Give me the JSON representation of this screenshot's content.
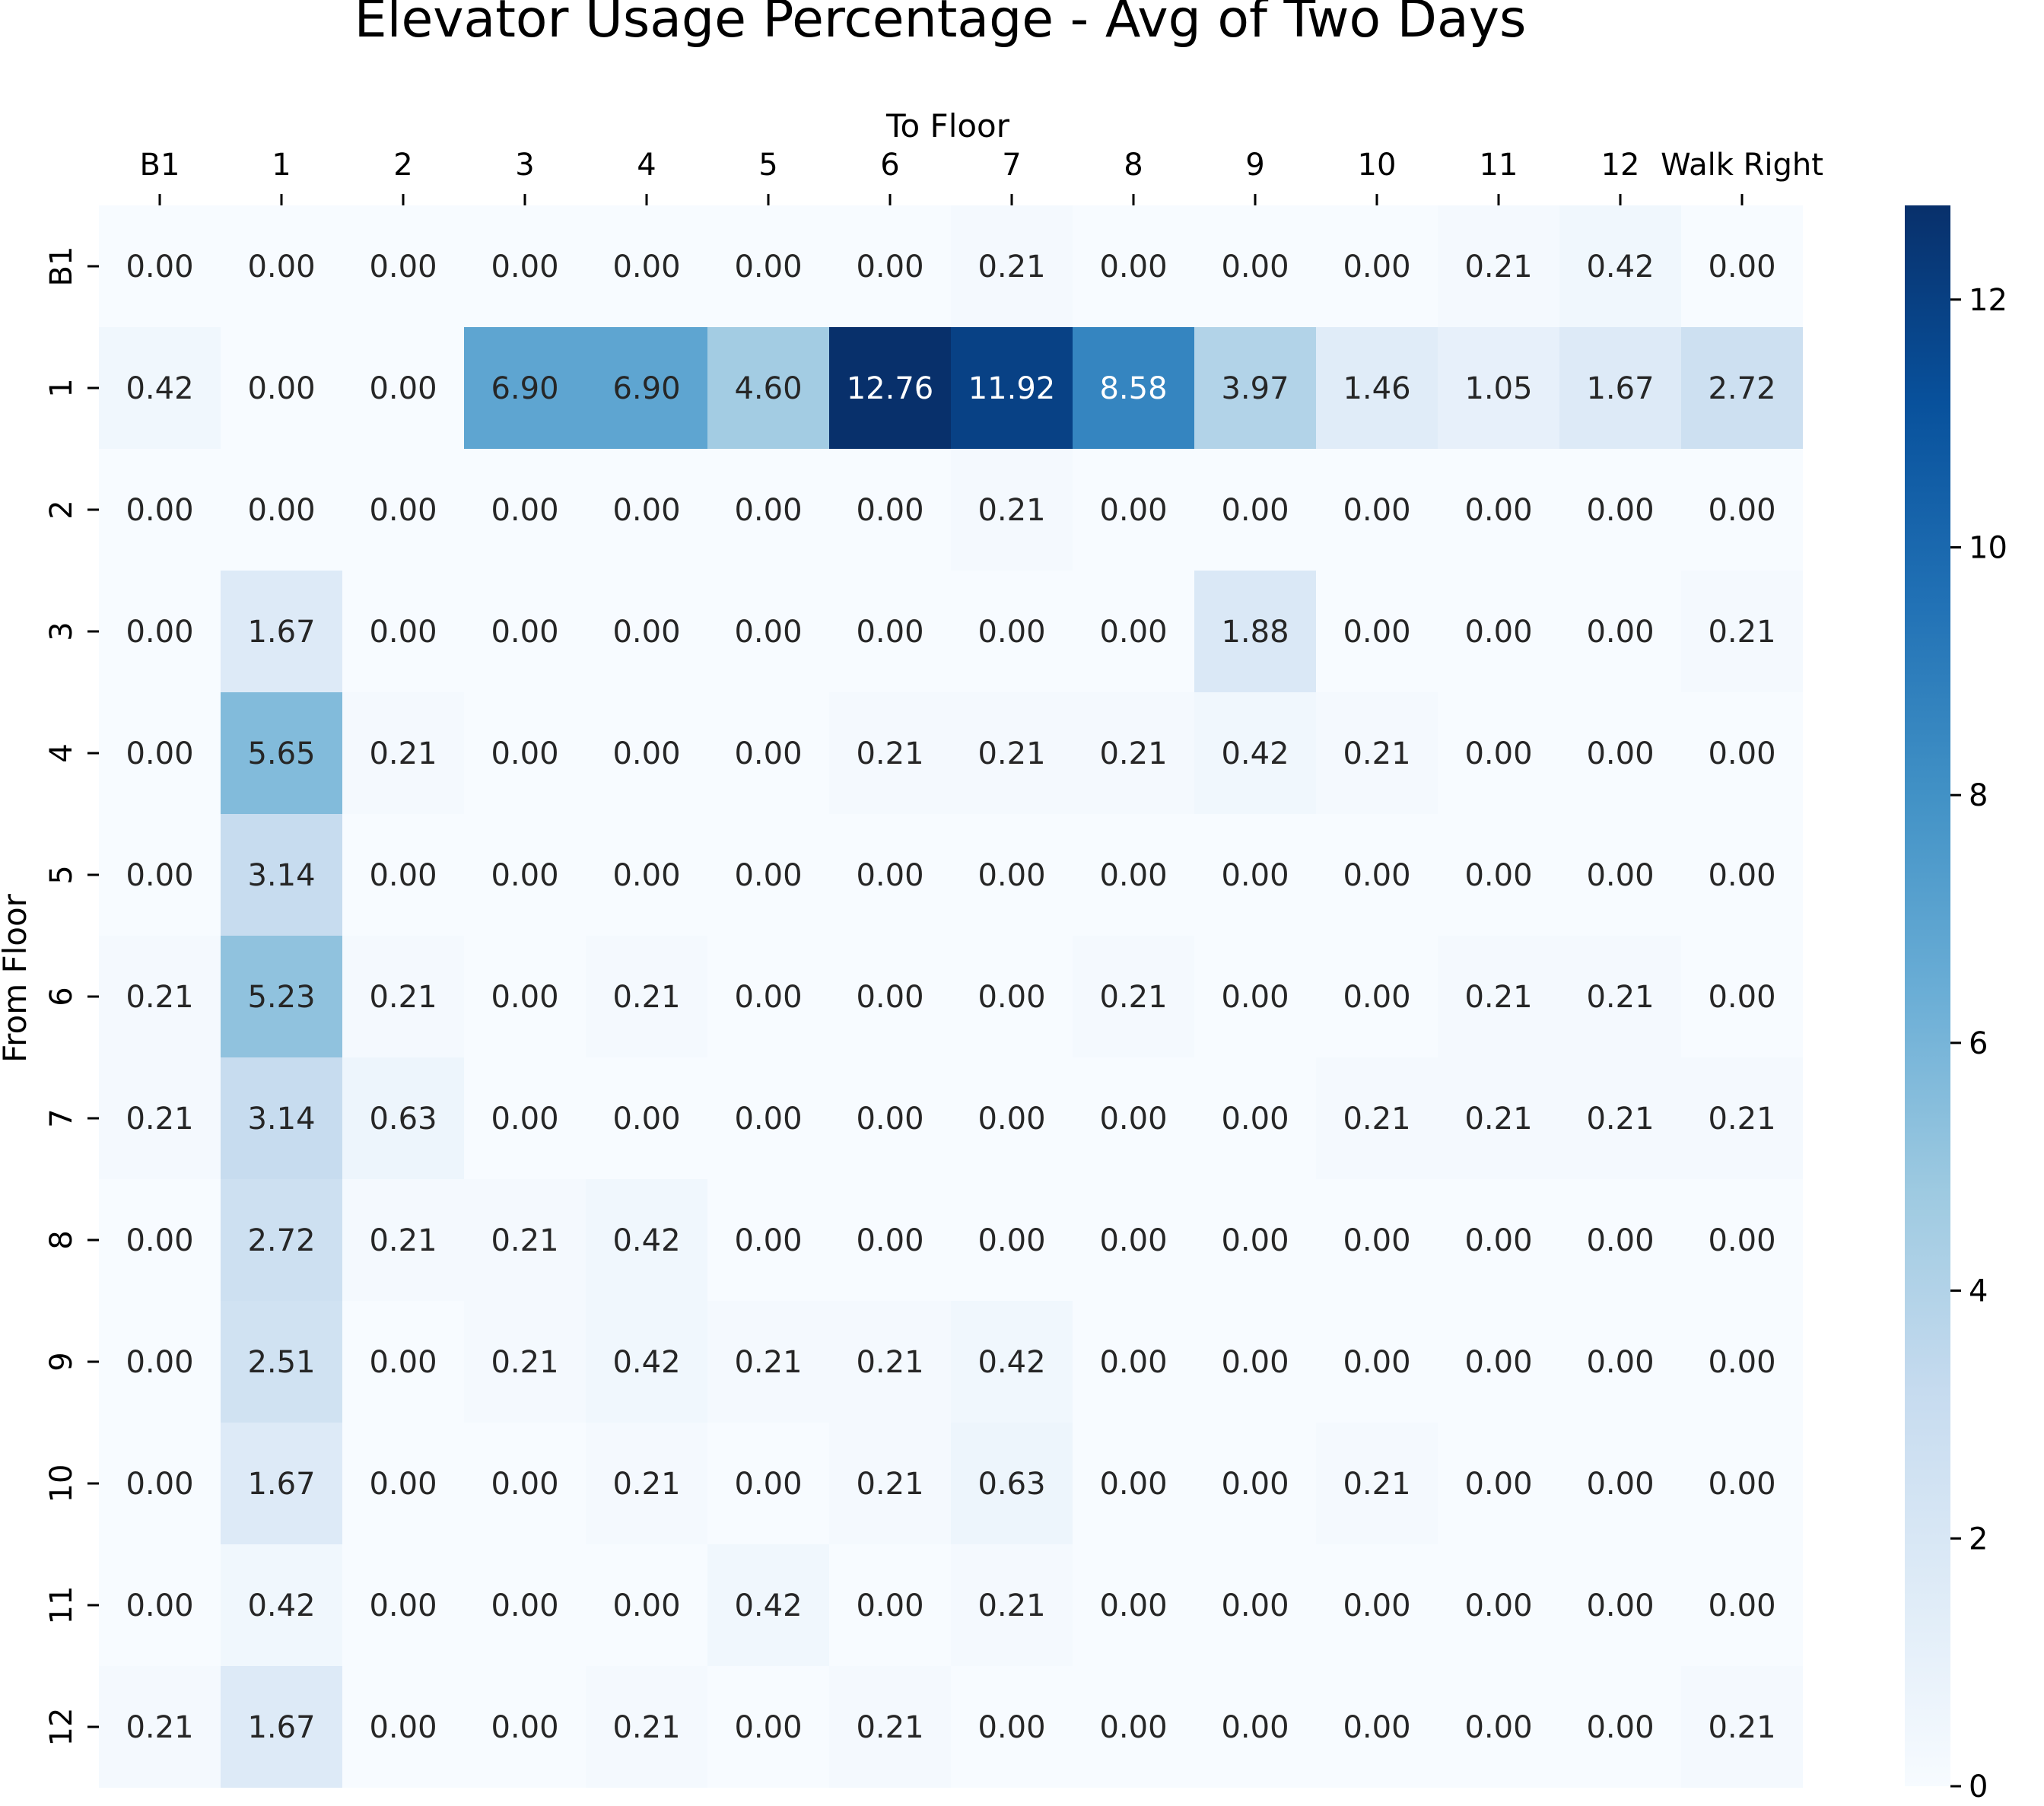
{
  "chart_data": {
    "type": "heatmap",
    "title": "Elevator Usage Percentage - Avg of Two Days",
    "xlabel": "To Floor",
    "ylabel": "From Floor",
    "x_categories": [
      "B1",
      "1",
      "2",
      "3",
      "4",
      "5",
      "6",
      "7",
      "8",
      "9",
      "10",
      "11",
      "12",
      "Walk Right"
    ],
    "y_categories": [
      "B1",
      "1",
      "2",
      "3",
      "4",
      "5",
      "6",
      "7",
      "8",
      "9",
      "10",
      "11",
      "12"
    ],
    "values": [
      [
        0.0,
        0.0,
        0.0,
        0.0,
        0.0,
        0.0,
        0.0,
        0.21,
        0.0,
        0.0,
        0.0,
        0.21,
        0.42,
        0.0
      ],
      [
        0.42,
        0.0,
        0.0,
        6.9,
        6.9,
        4.6,
        12.76,
        11.92,
        8.58,
        3.97,
        1.46,
        1.05,
        1.67,
        2.72
      ],
      [
        0.0,
        0.0,
        0.0,
        0.0,
        0.0,
        0.0,
        0.0,
        0.21,
        0.0,
        0.0,
        0.0,
        0.0,
        0.0,
        0.0
      ],
      [
        0.0,
        1.67,
        0.0,
        0.0,
        0.0,
        0.0,
        0.0,
        0.0,
        0.0,
        1.88,
        0.0,
        0.0,
        0.0,
        0.21
      ],
      [
        0.0,
        5.65,
        0.21,
        0.0,
        0.0,
        0.0,
        0.21,
        0.21,
        0.21,
        0.42,
        0.21,
        0.0,
        0.0,
        0.0
      ],
      [
        0.0,
        3.14,
        0.0,
        0.0,
        0.0,
        0.0,
        0.0,
        0.0,
        0.0,
        0.0,
        0.0,
        0.0,
        0.0,
        0.0
      ],
      [
        0.21,
        5.23,
        0.21,
        0.0,
        0.21,
        0.0,
        0.0,
        0.0,
        0.21,
        0.0,
        0.0,
        0.21,
        0.21,
        0.0
      ],
      [
        0.21,
        3.14,
        0.63,
        0.0,
        0.0,
        0.0,
        0.0,
        0.0,
        0.0,
        0.0,
        0.21,
        0.21,
        0.21,
        0.21
      ],
      [
        0.0,
        2.72,
        0.21,
        0.21,
        0.42,
        0.0,
        0.0,
        0.0,
        0.0,
        0.0,
        0.0,
        0.0,
        0.0,
        0.0
      ],
      [
        0.0,
        2.51,
        0.0,
        0.21,
        0.42,
        0.21,
        0.21,
        0.42,
        0.0,
        0.0,
        0.0,
        0.0,
        0.0,
        0.0
      ],
      [
        0.0,
        1.67,
        0.0,
        0.0,
        0.21,
        0.0,
        0.21,
        0.63,
        0.0,
        0.0,
        0.21,
        0.0,
        0.0,
        0.0
      ],
      [
        0.0,
        0.42,
        0.0,
        0.0,
        0.0,
        0.42,
        0.0,
        0.21,
        0.0,
        0.0,
        0.0,
        0.0,
        0.0,
        0.0
      ],
      [
        0.21,
        1.67,
        0.0,
        0.0,
        0.21,
        0.0,
        0.21,
        0.0,
        0.0,
        0.0,
        0.0,
        0.0,
        0.0,
        0.21
      ]
    ],
    "value_format_decimals": 2,
    "colormap": "Blues",
    "colormap_stops": [
      "#f7fbff",
      "#deebf7",
      "#c6dbef",
      "#9ecae1",
      "#6baed6",
      "#4292c6",
      "#2171b5",
      "#08519c",
      "#08306b"
    ],
    "vmin": 0,
    "vmax": 12.76,
    "colorbar_ticks": [
      0,
      2,
      4,
      6,
      8,
      10,
      12
    ],
    "colorbar_tick_labels": [
      "0",
      "2",
      "4",
      "6",
      "8",
      "10",
      "12"
    ],
    "x_axis_position": "top",
    "grid": false,
    "legend": "colorbar-right"
  }
}
